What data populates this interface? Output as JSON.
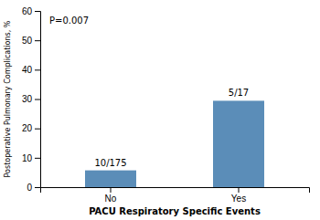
{
  "chart_data": {
    "type": "bar",
    "categories": [
      "No",
      "Yes"
    ],
    "values": [
      5.714,
      29.412
    ],
    "value_labels": [
      "10/175",
      "5/17"
    ],
    "data_labels": true,
    "color": "#5b8db8",
    "xlabel": "PACU Respiratory Specific Events",
    "ylabel": "Postoperative Pulmonary Complications, %",
    "annotations": [
      "P=0.007"
    ],
    "ylim": [
      0,
      60
    ],
    "yticks": [
      0,
      10,
      20,
      30,
      40,
      50,
      60
    ],
    "grid": false
  }
}
